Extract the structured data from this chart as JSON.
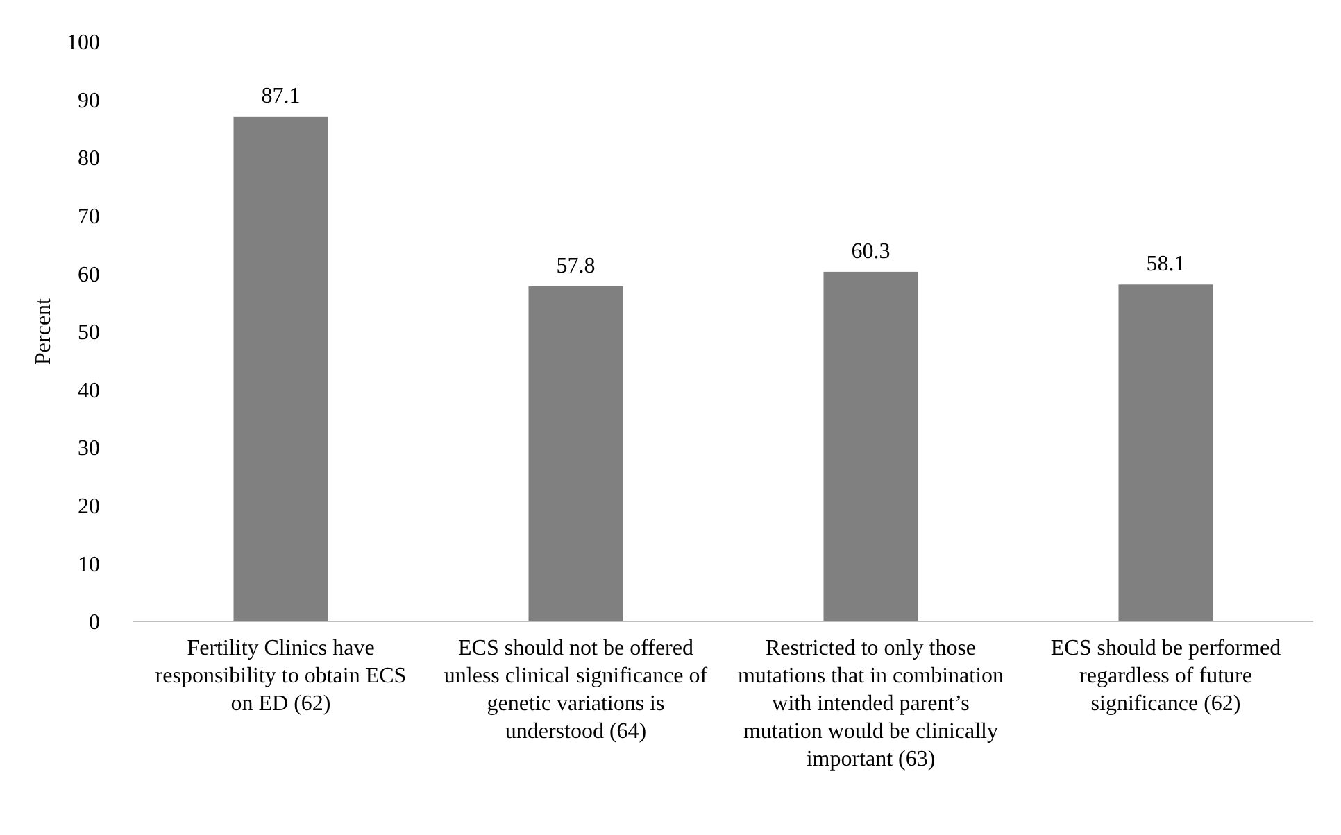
{
  "chart_data": {
    "type": "bar",
    "ylabel": "Percent",
    "categories": [
      "Fertility Clinics have responsibility to obtain ECS on ED (62)",
      "ECS should not be offered unless clinical significance of genetic variations is understood (64)",
      "Restricted to only those mutations that in combination with intended parent’s mutation would be clinically important (63)",
      "ECS should be performed regardless of future significance (62)"
    ],
    "values": [
      87.1,
      57.8,
      60.3,
      58.1
    ],
    "color": "#808080",
    "ylim": [
      0,
      100
    ],
    "yticks": [
      0,
      10,
      20,
      30,
      40,
      50,
      60,
      70,
      80,
      90,
      100
    ],
    "grid": false,
    "data_labels": true
  }
}
